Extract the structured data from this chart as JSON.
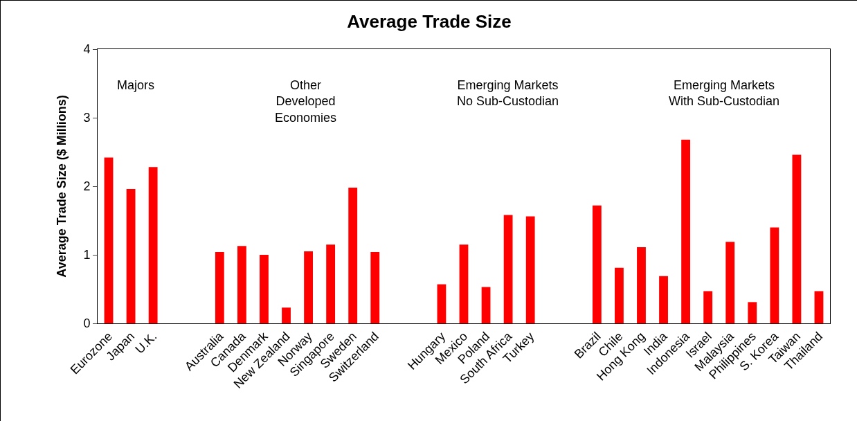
{
  "chart_data": {
    "type": "bar",
    "title": "Average Trade Size",
    "ylabel": "Average Trade Size ($ Millions)",
    "categories": [
      "Eurozone",
      "Japan",
      "U.K.",
      null,
      null,
      "Australia",
      "Canada",
      "Denmark",
      "New Zealand",
      "Norway",
      "Singapore",
      "Sweden",
      "Switzerland",
      null,
      null,
      "Hungary",
      "Mexico",
      "Poland",
      "South Africa",
      "Turkey",
      null,
      null,
      "Brazil",
      "Chile",
      "Hong Kong",
      "India",
      "Indonesia",
      "Israel",
      "Malaysia",
      "Philippines",
      "S. Korea",
      "Taiwan",
      "Thailand"
    ],
    "values": [
      2.42,
      1.96,
      2.28,
      null,
      null,
      1.04,
      1.13,
      1.0,
      0.23,
      1.05,
      1.15,
      1.98,
      1.04,
      null,
      null,
      0.57,
      1.15,
      0.53,
      1.58,
      1.56,
      null,
      null,
      1.72,
      0.81,
      1.11,
      0.69,
      2.68,
      0.47,
      1.19,
      0.31,
      1.4,
      2.46,
      0.47
    ],
    "color": "#ff0000",
    "ylim": [
      0,
      4
    ],
    "yticks": [
      0,
      1,
      2,
      3,
      4
    ],
    "grid": false,
    "annotations": [
      "Majors",
      "Other\nDeveloped\nEconomies",
      "Emerging Markets\nNo Sub-Custodian",
      "Emerging Markets\nWith Sub-Custodian"
    ]
  }
}
